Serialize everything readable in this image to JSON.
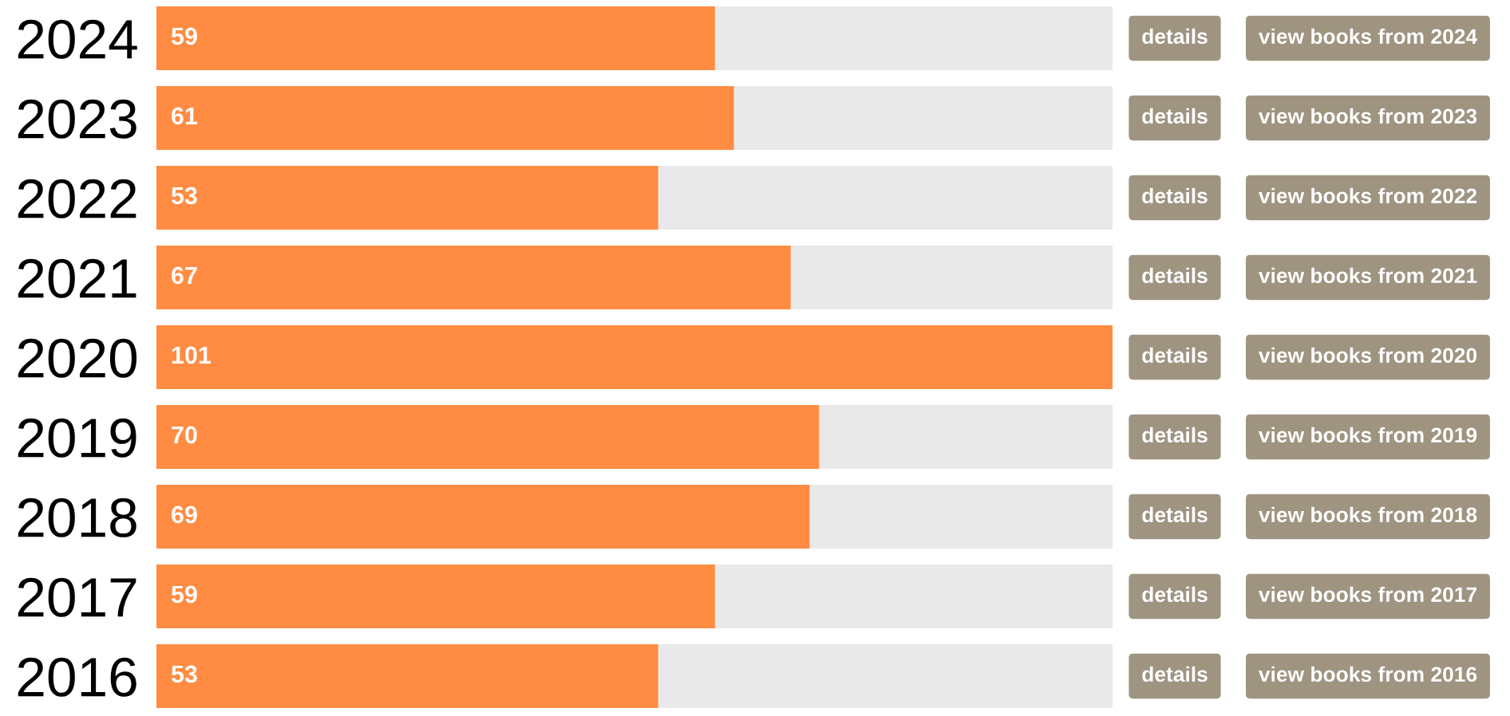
{
  "chart_data": {
    "type": "bar",
    "orientation": "horizontal",
    "data_labels": true,
    "tick_labels": "y",
    "categories": [
      "2024",
      "2023",
      "2022",
      "2021",
      "2020",
      "2019",
      "2018",
      "2017",
      "2016"
    ],
    "values": [
      59,
      61,
      53,
      67,
      101,
      70,
      69,
      59,
      53
    ],
    "color": "#ff8c42",
    "annotations": [
      "details",
      "view books from 2024",
      "details",
      "view books from 2023",
      "details",
      "view books from 2022",
      "details",
      "view books from 2021",
      "details",
      "view books from 2020",
      "details",
      "view books from 2019",
      "details",
      "view books from 2018",
      "details",
      "view books from 2017",
      "details",
      "view books from 2016"
    ]
  }
}
